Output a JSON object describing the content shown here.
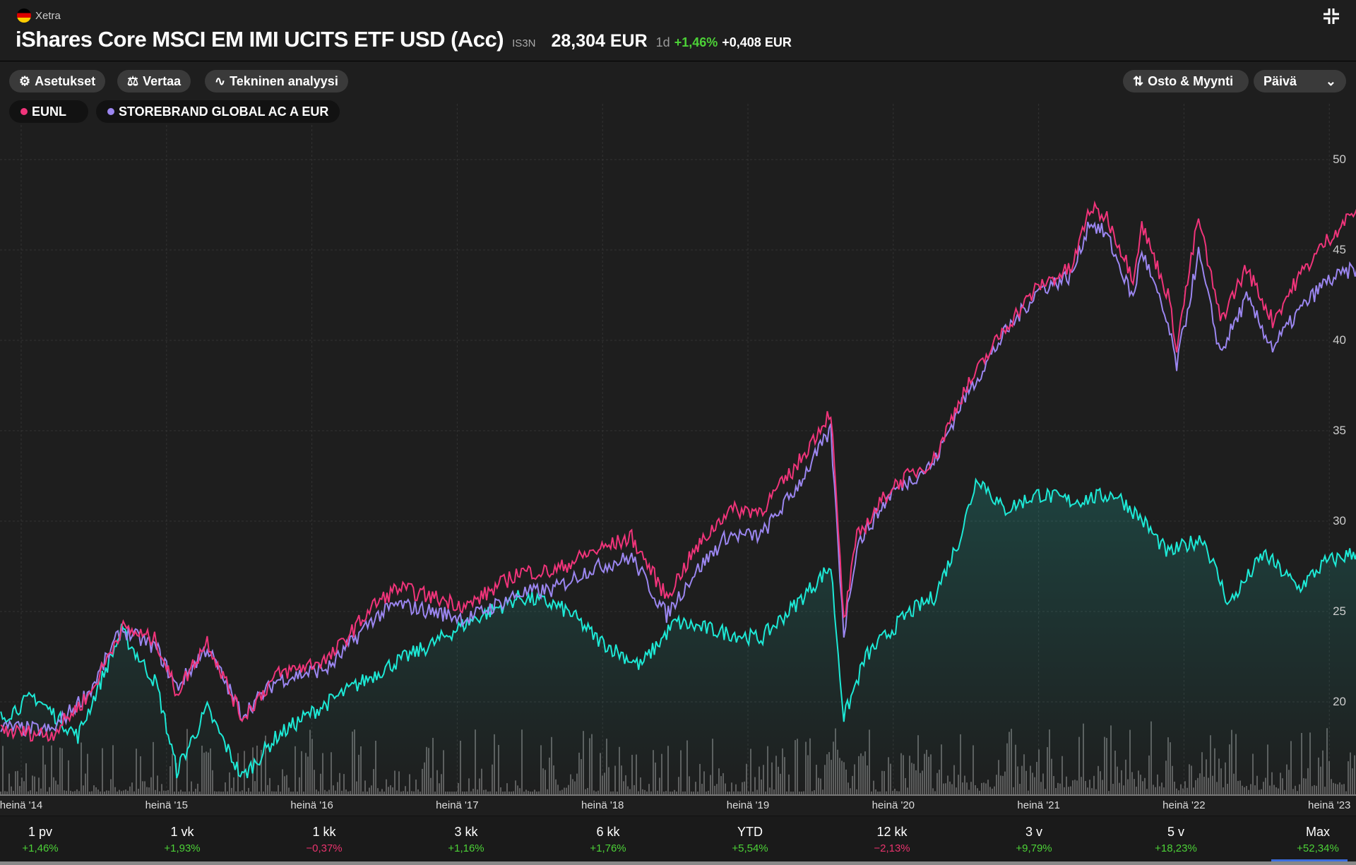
{
  "header": {
    "exchange": "Xetra",
    "title": "iShares Core MSCI EM IMI UCITS ETF USD (Acc)",
    "ticker": "IS3N",
    "price": "28,304 EUR",
    "period": "1d",
    "change_pct": "+1,46%",
    "change_abs": "+0,408 EUR",
    "collapse_icon": "collapse-icon"
  },
  "toolbar": {
    "settings": "Asetukset",
    "compare": "Vertaa",
    "technical": "Tekninen analyysi",
    "trade": "Osto & Myynti",
    "interval": "Päivä"
  },
  "legend": [
    {
      "label": "EUNL",
      "color": "#f0347a"
    },
    {
      "label": "STOREBRAND GLOBAL AC A EUR",
      "color": "#9b86f0"
    }
  ],
  "chart_data": {
    "type": "line",
    "x_ticks": [
      "heinä '14",
      "heinä '15",
      "heinä '16",
      "heinä '17",
      "heinä '18",
      "heinä '19",
      "heinä '20",
      "heinä '21",
      "heinä '22",
      "heinä '23"
    ],
    "x_tick_years": [
      2014.5,
      2015.5,
      2016.5,
      2017.5,
      2018.5,
      2019.5,
      2020.5,
      2021.5,
      2022.5,
      2023.5
    ],
    "y_ticks": [
      20,
      25,
      30,
      35,
      40,
      45,
      50
    ],
    "ylim": [
      15,
      52
    ],
    "series": [
      {
        "name": "IS3N",
        "color": "#1de9d6",
        "x": [
          2014.36,
          2014.59,
          2014.89,
          2015.19,
          2015.43,
          2015.57,
          2015.78,
          2016.02,
          2016.26,
          2016.44,
          2016.74,
          2017.03,
          2017.33,
          2017.57,
          2017.93,
          2018.16,
          2018.28,
          2018.46,
          2018.76,
          2019.0,
          2019.3,
          2019.59,
          2019.83,
          2020.07,
          2020.16,
          2020.31,
          2020.6,
          2020.78,
          2020.96,
          2021.08,
          2021.26,
          2021.5,
          2021.73,
          2022.03,
          2022.21,
          2022.39,
          2022.63,
          2022.81,
          2023.05,
          2023.29,
          2023.47,
          2023.69
        ],
        "values": [
          19.1,
          20.3,
          18.1,
          23.9,
          21.0,
          16.2,
          19.6,
          15.8,
          18.1,
          19.1,
          20.6,
          22.0,
          23.2,
          24.4,
          25.8,
          25.4,
          24.9,
          23.5,
          22.0,
          24.4,
          23.9,
          23.5,
          25.4,
          27.5,
          19.1,
          22.5,
          24.9,
          25.8,
          29.1,
          32.5,
          30.6,
          31.5,
          31.1,
          31.5,
          30.1,
          28.2,
          29.1,
          25.4,
          28.2,
          26.3,
          27.7,
          28.3
        ]
      },
      {
        "name": "EUNL",
        "color": "#f0347a",
        "x": [
          2014.36,
          2014.71,
          2014.98,
          2015.19,
          2015.43,
          2015.57,
          2015.78,
          2016.02,
          2016.26,
          2016.62,
          2016.92,
          2017.09,
          2017.57,
          2017.93,
          2018.16,
          2018.4,
          2018.7,
          2018.94,
          2019.12,
          2019.36,
          2019.59,
          2019.83,
          2020.07,
          2020.16,
          2020.25,
          2020.49,
          2020.78,
          2020.96,
          2021.26,
          2021.5,
          2021.73,
          2021.85,
          2021.97,
          2022.15,
          2022.21,
          2022.39,
          2022.45,
          2022.6,
          2022.75,
          2022.93,
          2023.11,
          2023.29,
          2023.47,
          2023.69
        ],
        "values": [
          18.4,
          18.2,
          20.5,
          24.1,
          23.4,
          20.5,
          23.4,
          19.1,
          21.5,
          22.4,
          25.3,
          26.3,
          25.3,
          27.2,
          27.2,
          28.2,
          29.1,
          25.8,
          28.2,
          30.6,
          30.6,
          33.0,
          36.1,
          24.4,
          29.1,
          31.9,
          33.4,
          36.8,
          40.6,
          43.0,
          44.0,
          47.3,
          46.8,
          43.5,
          46.4,
          42.5,
          39.7,
          46.8,
          41.1,
          44.0,
          41.1,
          43.5,
          45.4,
          47.3
        ]
      },
      {
        "name": "STOREBRAND GLOBAL AC A EUR",
        "color": "#9b86f0",
        "x": [
          2014.36,
          2014.71,
          2014.98,
          2015.19,
          2015.43,
          2015.57,
          2015.78,
          2016.02,
          2016.26,
          2016.62,
          2016.92,
          2017.09,
          2017.57,
          2017.93,
          2018.16,
          2018.4,
          2018.7,
          2018.94,
          2019.12,
          2019.36,
          2019.59,
          2019.83,
          2020.07,
          2020.16,
          2020.25,
          2020.49,
          2020.78,
          2020.96,
          2021.26,
          2021.5,
          2021.73,
          2021.85,
          2021.97,
          2022.15,
          2022.21,
          2022.39,
          2022.45,
          2022.6,
          2022.75,
          2022.93,
          2023.11,
          2023.29,
          2023.47,
          2023.69
        ],
        "values": [
          18.6,
          18.4,
          20.7,
          24.0,
          23.0,
          20.8,
          23.0,
          19.3,
          21.2,
          21.9,
          24.6,
          25.4,
          24.6,
          26.0,
          26.2,
          27.3,
          28.0,
          24.8,
          27.0,
          29.2,
          29.2,
          31.8,
          35.0,
          23.8,
          28.7,
          31.6,
          33.2,
          36.4,
          40.3,
          42.8,
          43.6,
          46.6,
          45.8,
          42.3,
          45.0,
          40.8,
          38.6,
          44.8,
          39.3,
          42.3,
          39.6,
          41.6,
          43.2,
          44.0
        ]
      }
    ]
  },
  "stats": [
    {
      "label": "1 pv",
      "value": "+1,46%",
      "dir": "pos"
    },
    {
      "label": "1 vk",
      "value": "+1,93%",
      "dir": "pos"
    },
    {
      "label": "1 kk",
      "value": "−0,37%",
      "dir": "neg"
    },
    {
      "label": "3 kk",
      "value": "+1,16%",
      "dir": "pos"
    },
    {
      "label": "6 kk",
      "value": "+1,76%",
      "dir": "pos"
    },
    {
      "label": "YTD",
      "value": "+5,54%",
      "dir": "pos"
    },
    {
      "label": "12 kk",
      "value": "−2,13%",
      "dir": "neg"
    },
    {
      "label": "3 v",
      "value": "+9,79%",
      "dir": "pos"
    },
    {
      "label": "5 v",
      "value": "+18,23%",
      "dir": "pos"
    },
    {
      "label": "Max",
      "value": "+52,34%",
      "dir": "pos"
    }
  ]
}
